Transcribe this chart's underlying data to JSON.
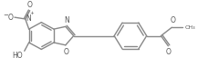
{
  "figsize": [
    2.17,
    0.74
  ],
  "dpi": 100,
  "line_color": "#888888",
  "line_width": 1.0,
  "text_color": "#555555",
  "xlim": [
    0,
    217
  ],
  "ylim": [
    0,
    74
  ],
  "bg": "white"
}
